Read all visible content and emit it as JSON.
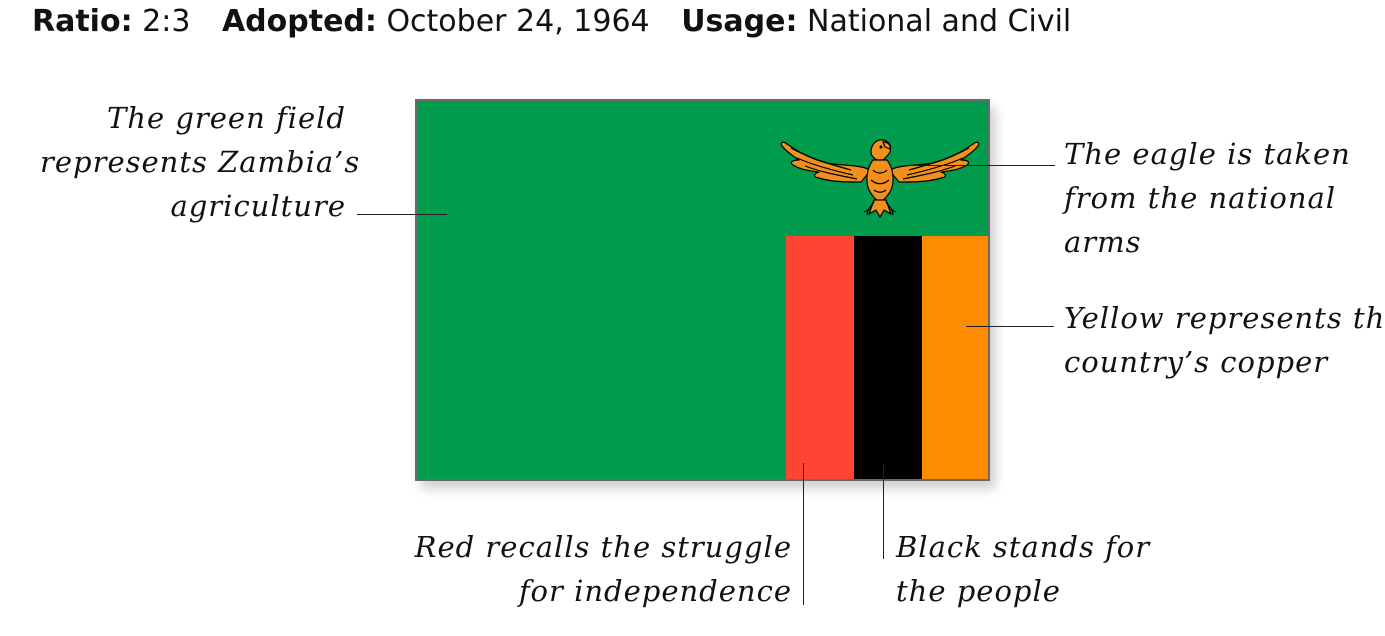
{
  "header": {
    "ratio_label": "Ratio:",
    "ratio_value": "2:3",
    "adopted_label": "Adopted:",
    "adopted_value": "October 24, 1964",
    "usage_label": "Usage:",
    "usage_value": "National and Civil"
  },
  "flag": {
    "colors": {
      "field": "#009B4D",
      "red": "#FF4433",
      "black": "#000000",
      "orange": "#FF8C00",
      "eagle": "#F2901E"
    }
  },
  "annotations": {
    "green": [
      "The green field",
      "represents Zambia’s",
      "agriculture"
    ],
    "eagle": [
      "The eagle is taken",
      "from the national",
      "arms"
    ],
    "yellow": [
      "Yellow represents the",
      "country’s copper"
    ],
    "red": [
      "Red recalls the struggle",
      "for independence"
    ],
    "black": [
      "Black stands for",
      "the people"
    ]
  }
}
